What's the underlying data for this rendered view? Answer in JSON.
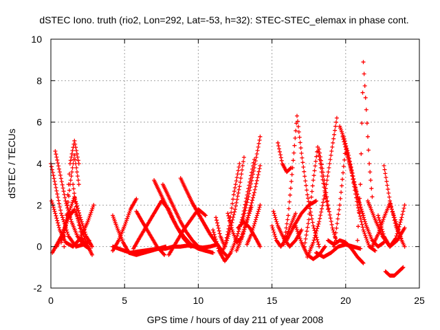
{
  "chart_data": {
    "type": "scatter",
    "title": "dSTEC Iono. truth (rio2, Lon=292, Lat=-53, h=32): STEC-STEC_elemax in phase cont.",
    "xlabel": "GPS time / hours of day 211 of year 2008",
    "ylabel": "dSTEC  / TECUs",
    "xlim": [
      0,
      25
    ],
    "ylim": [
      -2,
      10
    ],
    "xticks": [
      0,
      5,
      10,
      15,
      20,
      25
    ],
    "yticks": [
      -2,
      0,
      2,
      4,
      6,
      8,
      10
    ],
    "grid": true,
    "marker": "+",
    "series_color": "#ff0000",
    "arcs": [
      {
        "x": [
          0.0,
          0.3,
          0.7,
          1.2,
          1.7,
          2.2,
          2.6
        ],
        "y": [
          4.0,
          3.0,
          1.6,
          0.5,
          0.0,
          0.1,
          0.3
        ]
      },
      {
        "x": [
          0.05,
          0.3,
          0.6,
          1.0,
          1.5,
          2.0,
          2.5,
          2.9
        ],
        "y": [
          2.2,
          1.6,
          0.8,
          0.2,
          0.0,
          0.4,
          1.2,
          2.0
        ]
      },
      {
        "x": [
          0.1,
          0.4,
          0.8,
          1.2,
          1.6,
          2.0,
          2.4,
          2.8
        ],
        "y": [
          -0.3,
          0.1,
          0.6,
          1.4,
          1.8,
          1.0,
          0.2,
          -0.4
        ]
      },
      {
        "x": [
          0.3,
          0.6,
          1.0,
          1.4,
          1.8,
          2.2,
          2.6
        ],
        "y": [
          4.6,
          3.6,
          2.2,
          1.2,
          0.5,
          0.1,
          -0.1
        ]
      },
      {
        "x": [
          0.4,
          0.8,
          1.2,
          1.6,
          2.0,
          2.4,
          2.8
        ],
        "y": [
          0.0,
          0.6,
          1.6,
          2.4,
          1.4,
          0.5,
          0.0
        ]
      },
      {
        "x": [
          0.7,
          1.0,
          1.3,
          1.6,
          1.9
        ],
        "y": [
          0.2,
          1.0,
          3.0,
          4.4,
          3.0
        ]
      },
      {
        "x": [
          0.9,
          1.1,
          1.3,
          1.6,
          1.9
        ],
        "y": [
          0.0,
          2.0,
          4.0,
          5.1,
          4.0
        ]
      },
      {
        "x": [
          1.5,
          1.8,
          2.1,
          2.4
        ],
        "y": [
          3.0,
          1.5,
          0.4,
          0.0
        ]
      },
      {
        "x": [
          4.2,
          4.5,
          4.9,
          5.3,
          5.8,
          6.3,
          6.8,
          7.3,
          7.8
        ],
        "y": [
          1.5,
          0.9,
          0.2,
          -0.3,
          -0.4,
          -0.3,
          -0.2,
          -0.1,
          0.0
        ]
      },
      {
        "x": [
          4.2,
          4.6,
          5.0,
          5.4,
          5.8,
          6.3,
          6.8,
          7.3,
          7.8,
          8.3,
          8.8,
          9.3,
          9.8,
          10.3,
          10.8,
          11.3
        ],
        "y": [
          0.0,
          -0.1,
          -0.2,
          -0.3,
          -0.25,
          -0.2,
          -0.15,
          -0.1,
          -0.1,
          0.0,
          0.0,
          0.05,
          0.0,
          -0.05,
          0.0,
          0.1
        ]
      },
      {
        "x": [
          4.2,
          4.6,
          5.0,
          5.4,
          5.8
        ],
        "y": [
          -0.2,
          0.3,
          1.0,
          1.8,
          2.3
        ]
      },
      {
        "x": [
          5.6,
          6.0,
          6.5,
          7.0,
          7.5,
          8.0,
          8.5,
          9.0,
          9.5
        ],
        "y": [
          -0.1,
          0.4,
          1.0,
          1.6,
          2.2,
          1.8,
          1.0,
          0.4,
          0.0
        ]
      },
      {
        "x": [
          5.8,
          6.2,
          6.7,
          7.2,
          7.7
        ],
        "y": [
          1.7,
          1.2,
          0.6,
          0.0,
          -0.4
        ]
      },
      {
        "x": [
          7.0,
          7.4,
          7.8,
          8.2,
          8.6,
          9.0,
          9.5,
          10.0,
          10.5
        ],
        "y": [
          3.2,
          2.6,
          2.0,
          1.4,
          0.9,
          0.5,
          0.1,
          -0.1,
          -0.2
        ]
      },
      {
        "x": [
          7.6,
          8.0,
          8.4,
          8.8,
          9.2,
          9.6,
          10.0,
          10.5,
          11.0
        ],
        "y": [
          3.0,
          2.4,
          1.8,
          1.2,
          0.7,
          0.3,
          0.0,
          -0.2,
          -0.3
        ]
      },
      {
        "x": [
          8.8,
          9.2,
          9.6,
          10.0,
          10.4,
          10.8,
          11.2,
          11.6
        ],
        "y": [
          3.3,
          2.7,
          2.1,
          1.6,
          1.1,
          0.6,
          0.2,
          -0.2
        ]
      },
      {
        "x": [
          9.6,
          10.0,
          10.4,
          10.8,
          11.2,
          11.6,
          12.0
        ],
        "y": [
          2.1,
          1.6,
          1.1,
          0.6,
          0.2,
          -0.2,
          -0.5
        ]
      },
      {
        "x": [
          8.0,
          8.5,
          9.0,
          9.5,
          10.0,
          10.5
        ],
        "y": [
          -0.4,
          0.2,
          0.8,
          1.3,
          1.8,
          1.5
        ]
      },
      {
        "x": [
          11.0,
          11.4,
          11.8,
          12.2,
          12.6,
          13.0,
          13.4,
          13.8
        ],
        "y": [
          0.8,
          -0.2,
          -0.7,
          -0.3,
          0.4,
          1.4,
          2.8,
          4.2
        ]
      },
      {
        "x": [
          11.2,
          11.5,
          11.8,
          12.1,
          12.4,
          12.8
        ],
        "y": [
          1.4,
          0.5,
          0.0,
          1.0,
          2.5,
          4.0
        ]
      },
      {
        "x": [
          11.6,
          11.9,
          12.2,
          12.5,
          12.8,
          13.1
        ],
        "y": [
          -0.3,
          0.2,
          0.9,
          1.8,
          2.9,
          4.3
        ]
      },
      {
        "x": [
          12.0,
          12.3,
          12.6,
          12.9,
          13.2,
          13.6
        ],
        "y": [
          1.6,
          0.8,
          0.2,
          0.4,
          1.0,
          1.9
        ]
      },
      {
        "x": [
          12.6,
          13.0,
          13.4,
          13.8,
          14.2
        ],
        "y": [
          -0.2,
          0.5,
          1.5,
          2.6,
          3.9
        ]
      },
      {
        "x": [
          13.0,
          13.4,
          13.8,
          14.2
        ],
        "y": [
          1.2,
          2.4,
          3.8,
          5.3
        ]
      },
      {
        "x": [
          12.7,
          13.1,
          13.5,
          13.9,
          14.2
        ],
        "y": [
          0.9,
          1.2,
          0.9,
          0.4,
          0.0
        ]
      },
      {
        "x": [
          13.3,
          13.6,
          13.9,
          14.2
        ],
        "y": [
          0.1,
          0.6,
          1.3,
          2.0
        ]
      },
      {
        "x": [
          15.0,
          15.3,
          15.6,
          15.9,
          16.2,
          16.6
        ],
        "y": [
          1.0,
          0.3,
          0.0,
          0.3,
          0.9,
          1.6
        ]
      },
      {
        "x": [
          15.1,
          15.4,
          15.8,
          16.2,
          16.6,
          17.0
        ],
        "y": [
          1.7,
          1.0,
          0.4,
          0.0,
          0.3,
          0.8
        ]
      },
      {
        "x": [
          15.4,
          15.7,
          16.0,
          16.3
        ],
        "y": [
          5.0,
          4.0,
          3.6,
          3.8
        ]
      },
      {
        "x": [
          15.8,
          16.1,
          16.4,
          16.7,
          17.0,
          17.4,
          17.8,
          18.2
        ],
        "y": [
          0.1,
          1.5,
          3.8,
          6.3,
          4.5,
          2.5,
          1.0,
          0.0
        ]
      },
      {
        "x": [
          16.0,
          16.5,
          17.0,
          17.5,
          18.0
        ],
        "y": [
          0.3,
          1.0,
          1.6,
          2.0,
          2.2
        ]
      },
      {
        "x": [
          16.6,
          17.0,
          17.4,
          17.8,
          18.2,
          18.6
        ],
        "y": [
          1.0,
          0.2,
          -0.4,
          -0.6,
          -0.4,
          0.0
        ]
      },
      {
        "x": [
          17.2,
          17.5,
          17.8,
          18.1,
          18.4,
          18.8
        ],
        "y": [
          0.0,
          1.3,
          3.2,
          4.8,
          3.4,
          1.8
        ]
      },
      {
        "x": [
          17.4,
          17.8,
          18.2,
          18.6,
          19.0,
          19.4
        ],
        "y": [
          -0.5,
          0.2,
          1.2,
          2.6,
          4.4,
          6.2
        ]
      },
      {
        "x": [
          18.2,
          18.5,
          18.8,
          19.1,
          19.4
        ],
        "y": [
          4.7,
          3.4,
          2.0,
          0.9,
          0.2
        ]
      },
      {
        "x": [
          18.0,
          18.5,
          19.0,
          19.5,
          20.0,
          20.5,
          21.0
        ],
        "y": [
          -0.3,
          -0.5,
          -0.3,
          0.0,
          0.1,
          0.0,
          -0.1
        ]
      },
      {
        "x": [
          18.8,
          19.2,
          19.6,
          20.0,
          20.4,
          20.8,
          21.2
        ],
        "y": [
          0.3,
          0.1,
          0.3,
          0.2,
          -0.1,
          -0.5,
          -0.8
        ]
      },
      {
        "x": [
          19.2,
          19.6,
          20.0,
          20.4,
          20.8,
          21.2,
          21.6,
          22.0
        ],
        "y": [
          0.0,
          2.0,
          4.8,
          3.6,
          2.0,
          0.8,
          0.0,
          -0.2
        ]
      },
      {
        "x": [
          19.6,
          19.9,
          20.2,
          20.5,
          20.8,
          21.2
        ],
        "y": [
          5.8,
          5.2,
          4.4,
          3.4,
          2.4,
          1.5
        ]
      },
      {
        "x": [
          19.8,
          20.2,
          20.6,
          21.0,
          21.4,
          21.8,
          22.2,
          22.6
        ],
        "y": [
          5.3,
          4.2,
          3.0,
          1.9,
          1.0,
          0.3,
          0.0,
          0.2
        ]
      },
      {
        "x": [
          20.8,
          21.0,
          21.2,
          21.4,
          21.6,
          21.8
        ],
        "y": [
          0.3,
          3.0,
          8.9,
          6.6,
          4.0,
          2.4
        ]
      },
      {
        "x": [
          21.5,
          22.0,
          22.5,
          23.0,
          23.5,
          24.0
        ],
        "y": [
          2.2,
          1.3,
          0.5,
          0.0,
          0.3,
          0.9
        ]
      },
      {
        "x": [
          21.8,
          22.2,
          22.6,
          23.0,
          23.4,
          23.8
        ],
        "y": [
          0.0,
          0.6,
          1.4,
          2.1,
          1.2,
          0.3
        ]
      },
      {
        "x": [
          22.2,
          22.6,
          23.0,
          23.4,
          23.8,
          24.0
        ],
        "y": [
          1.5,
          0.5,
          0.0,
          0.4,
          1.4,
          2.0
        ]
      },
      {
        "x": [
          22.6,
          23.0,
          23.4,
          23.8,
          24.0
        ],
        "y": [
          3.9,
          2.2,
          1.0,
          0.3,
          0.0
        ]
      },
      {
        "x": [
          22.7,
          23.0,
          23.3,
          23.6,
          23.9
        ],
        "y": [
          -1.2,
          -1.4,
          -1.4,
          -1.2,
          -1.0
        ]
      }
    ]
  }
}
